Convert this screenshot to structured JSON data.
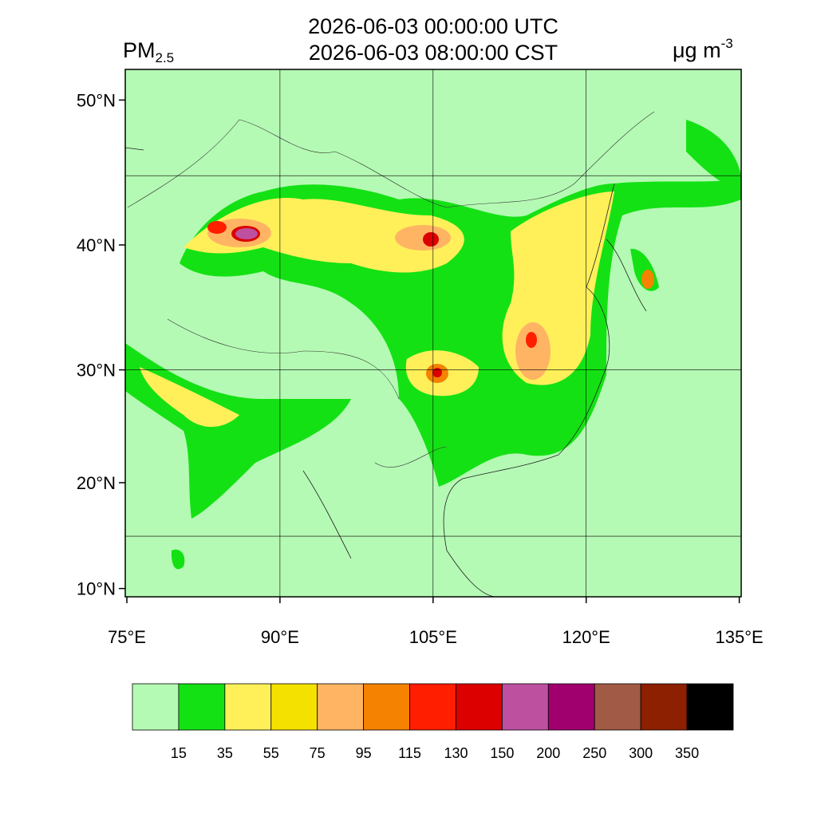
{
  "title": [
    "2026-06-03 00:00:00 UTC",
    "2026-06-03 08:00:00 CST"
  ],
  "variable": {
    "text": "PM",
    "subscript": "2.5"
  },
  "units": {
    "text": "μg m",
    "superscript": "-3"
  },
  "map": {
    "lon_ticks": [
      {
        "value": 75,
        "label": "75°E"
      },
      {
        "value": 90,
        "label": "90°E"
      },
      {
        "value": 105,
        "label": "105°E"
      },
      {
        "value": 120,
        "label": "120°E"
      },
      {
        "value": 135,
        "label": "135°E"
      }
    ],
    "lat_ticks": [
      {
        "value": 10,
        "label": "10°N"
      },
      {
        "value": 20,
        "label": "20°N"
      },
      {
        "value": 30,
        "label": "30°N"
      },
      {
        "value": 40,
        "label": "40°N"
      },
      {
        "value": 50,
        "label": "50°N"
      }
    ],
    "grid_lon": [
      90,
      105,
      120
    ],
    "grid_lat": [
      15,
      30,
      45
    ]
  },
  "colorbar": {
    "colors": [
      "#b4fab4",
      "#14e114",
      "#fff05a",
      "#f5e100",
      "#ffb464",
      "#f58200",
      "#ff1e00",
      "#dc0000",
      "#be50a0",
      "#a0006e",
      "#a05a46",
      "#8c2000",
      "#000000"
    ],
    "levels": [
      15,
      35,
      55,
      75,
      95,
      115,
      130,
      150,
      200,
      250,
      300,
      350
    ]
  }
}
